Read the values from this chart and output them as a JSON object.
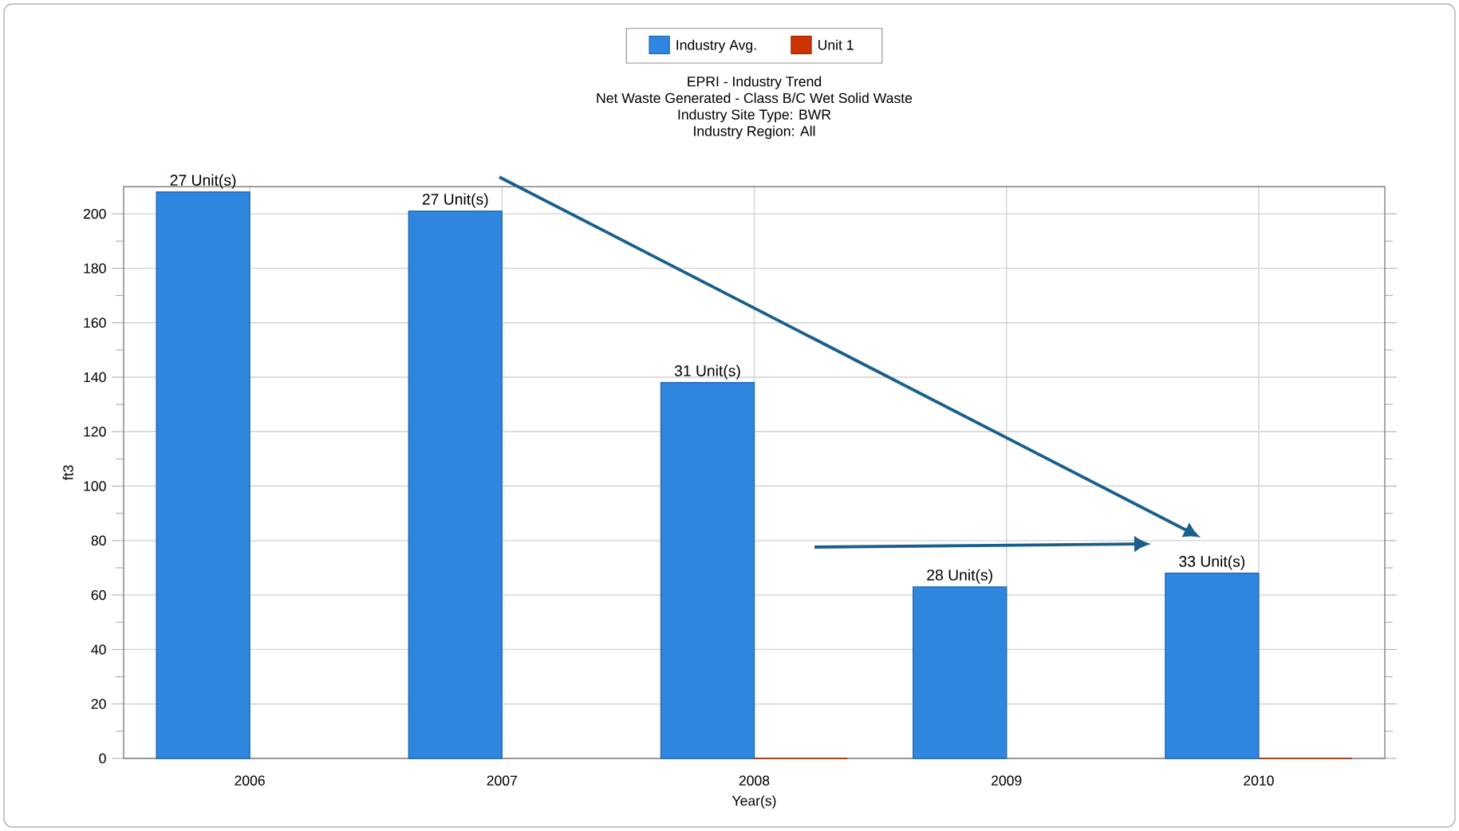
{
  "chart_data": {
    "type": "bar",
    "title": "EPRI - Industry Trend",
    "subtitle": "Net Waste Generated - Class B/C Wet Solid Waste",
    "annotations": [
      "Industry Site Type: BWR",
      "Industry Region: All",
      {
        "text": "27 Unit(s)",
        "x": "2006",
        "y": 208
      },
      {
        "text": "27 Unit(s)",
        "x": "2007",
        "y": 201
      },
      {
        "text": "31 Unit(s)",
        "x": "2008",
        "y": 138
      },
      {
        "text": "28 Unit(s)",
        "x": "2009",
        "y": 63
      },
      {
        "text": "33 Unit(s)",
        "x": "2010",
        "y": 68
      }
    ],
    "xlabel": "Year(s)",
    "ylabel": "ft3",
    "categories": [
      "2006",
      "2007",
      "2008",
      "2009",
      "2010"
    ],
    "series": [
      {
        "name": "Industry Avg.",
        "color": "#2e86de",
        "values": [
          208,
          201,
          138,
          63,
          68
        ]
      },
      {
        "name": "Unit 1",
        "color": "#cc3300",
        "values": [
          null,
          null,
          0,
          null,
          0
        ]
      }
    ],
    "ylim": [
      0,
      210
    ],
    "yticks": [
      0,
      20,
      40,
      60,
      80,
      100,
      120,
      140,
      160,
      180,
      200
    ],
    "grid": true,
    "legend": "top"
  }
}
